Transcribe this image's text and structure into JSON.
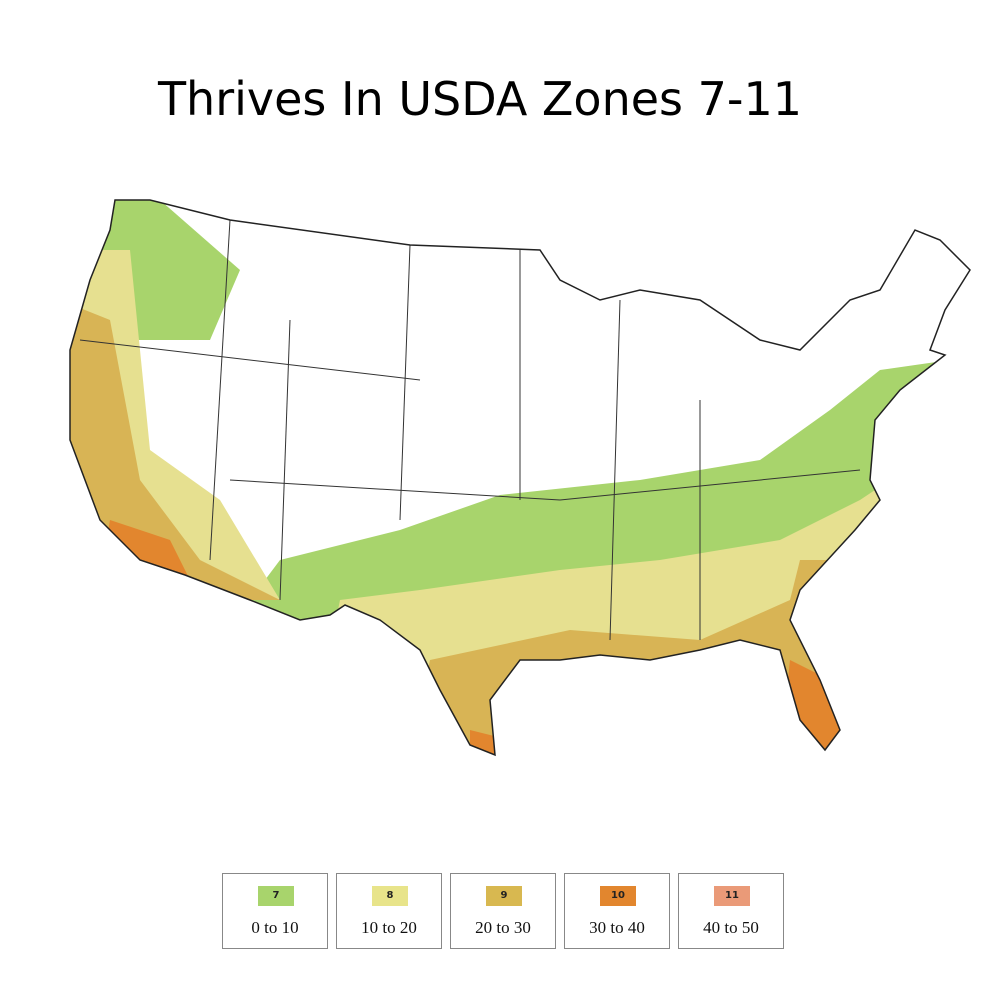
{
  "title": "Thrives In USDA Zones 7-11",
  "legend": [
    {
      "zone": "7",
      "range": "0 to 10",
      "color": "#a8d46c"
    },
    {
      "zone": "8",
      "range": "10 to 20",
      "color": "#e8e48a"
    },
    {
      "zone": "9",
      "range": "20 to 30",
      "color": "#d8b850"
    },
    {
      "zone": "10",
      "range": "30 to 40",
      "color": "#e2862e"
    },
    {
      "zone": "11",
      "range": "40 to 50",
      "color": "#ea9a78"
    }
  ]
}
